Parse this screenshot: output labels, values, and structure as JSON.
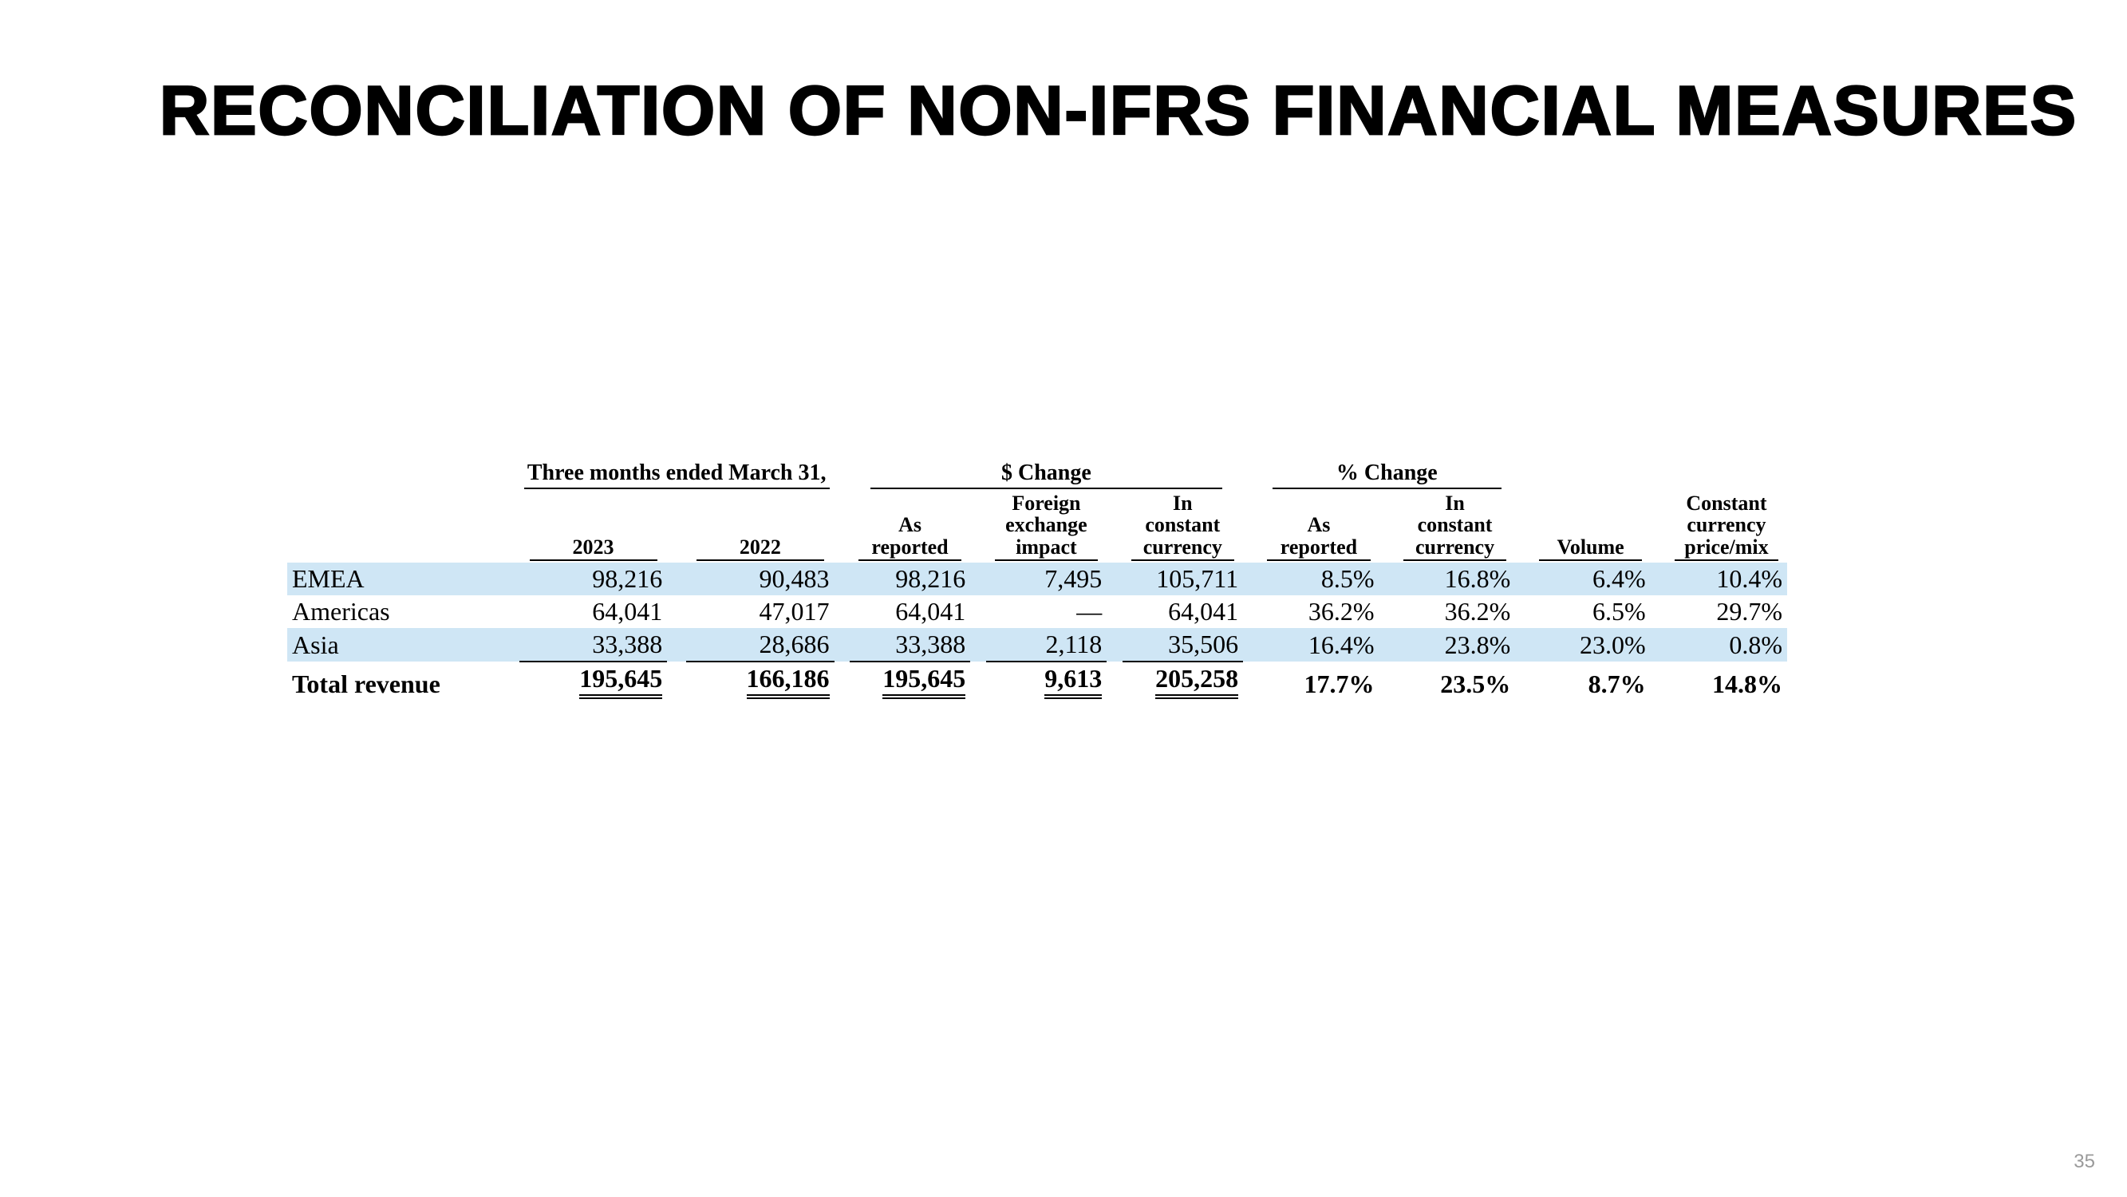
{
  "title": "RECONCILIATION OF NON-IFRS FINANCIAL MEASURES",
  "page_number": "35",
  "colors": {
    "background": "#ffffff",
    "text": "#000000",
    "stripe": "#cfe6f5",
    "page_number": "#9a9a9a",
    "rule": "#000000"
  },
  "typography": {
    "title_font": "Arial Black / heavy sans",
    "title_size_pt": 48,
    "body_font": "Times New Roman",
    "body_size_pt": 18,
    "header_size_pt": 15
  },
  "headers": {
    "group": {
      "period": "Three months ended March 31,",
      "dollar_change": "$ Change",
      "pct_change": "% Change"
    },
    "cols": {
      "y2023": "2023",
      "y2022": "2022",
      "as": "As",
      "reported": "reported",
      "foreign": "Foreign",
      "exchange": "exchange",
      "impact": "impact",
      "in": "In",
      "constant": "constant",
      "currency": "currency",
      "volume": "Volume",
      "constant_cap": "Constant",
      "price_mix": "price/mix"
    }
  },
  "rows": [
    {
      "label": "EMEA",
      "y2023": "98,216",
      "y2022": "90,483",
      "as_rep": "98,216",
      "fx": "7,495",
      "cc": "105,711",
      "pct_as_rep": "8.5%",
      "pct_cc": "16.8%",
      "volume": "6.4%",
      "price_mix": "10.4%"
    },
    {
      "label": "Americas",
      "y2023": "64,041",
      "y2022": "47,017",
      "as_rep": "64,041",
      "fx": "—",
      "cc": "64,041",
      "pct_as_rep": "36.2%",
      "pct_cc": "36.2%",
      "volume": "6.5%",
      "price_mix": "29.7%"
    },
    {
      "label": "Asia",
      "y2023": "33,388",
      "y2022": "28,686",
      "as_rep": "33,388",
      "fx": "2,118",
      "cc": "35,506",
      "pct_as_rep": "16.4%",
      "pct_cc": "23.8%",
      "volume": "23.0%",
      "price_mix": "0.8%"
    }
  ],
  "total": {
    "label": "Total revenue",
    "y2023": "195,645",
    "y2022": "166,186",
    "as_rep": "195,645",
    "fx": "9,613",
    "cc": "205,258",
    "pct_as_rep": "17.7%",
    "pct_cc": "23.5%",
    "volume": "8.7%",
    "price_mix": "14.8%"
  },
  "table_style": {
    "type": "table",
    "stripe_rows": [
      0,
      2
    ],
    "thin_underline_row": 2,
    "double_rule_on_total_cols": [
      "y2023",
      "y2022",
      "as_rep",
      "fx",
      "cc"
    ],
    "column_alignment": {
      "label": "left",
      "numbers": "right"
    }
  }
}
